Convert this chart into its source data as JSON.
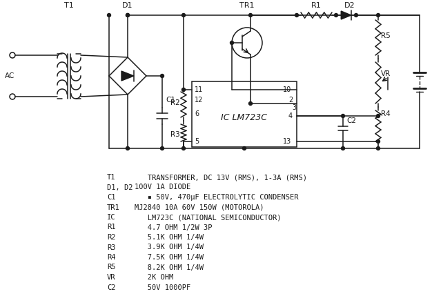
{
  "bg_color": "#ffffff",
  "line_color": "#1a1a1a",
  "fig_width": 6.26,
  "fig_height": 4.42,
  "dpi": 100,
  "bom_lines": [
    [
      "T1",
      "   TRANSFORMER, DC 13V (RMS), 1-3A (RMS)"
    ],
    [
      "D1, D2",
      "100V 1A DIODE"
    ],
    [
      "C1",
      "   ▪ 50V, 470μF ELECTROLYTIC CONDENSER"
    ],
    [
      "TR1",
      "MJ2840 10A 60V 150W (MOTOROLA)"
    ],
    [
      "IC",
      "   LM723C (NATIONAL SEMICONDUCTOR)"
    ],
    [
      "R1",
      "   4.7 OHM 1/2W 3P"
    ],
    [
      "R2",
      "   5.1K OHM 1/4W"
    ],
    [
      "R3",
      "   3.9K OHM 1/4W"
    ],
    [
      "R4",
      "   7.5K OHM 1/4W"
    ],
    [
      "R5",
      "   8.2K OHM 1/4W"
    ],
    [
      "VR",
      "   2K OHM"
    ],
    [
      "C2",
      "   50V 1000PF"
    ]
  ]
}
